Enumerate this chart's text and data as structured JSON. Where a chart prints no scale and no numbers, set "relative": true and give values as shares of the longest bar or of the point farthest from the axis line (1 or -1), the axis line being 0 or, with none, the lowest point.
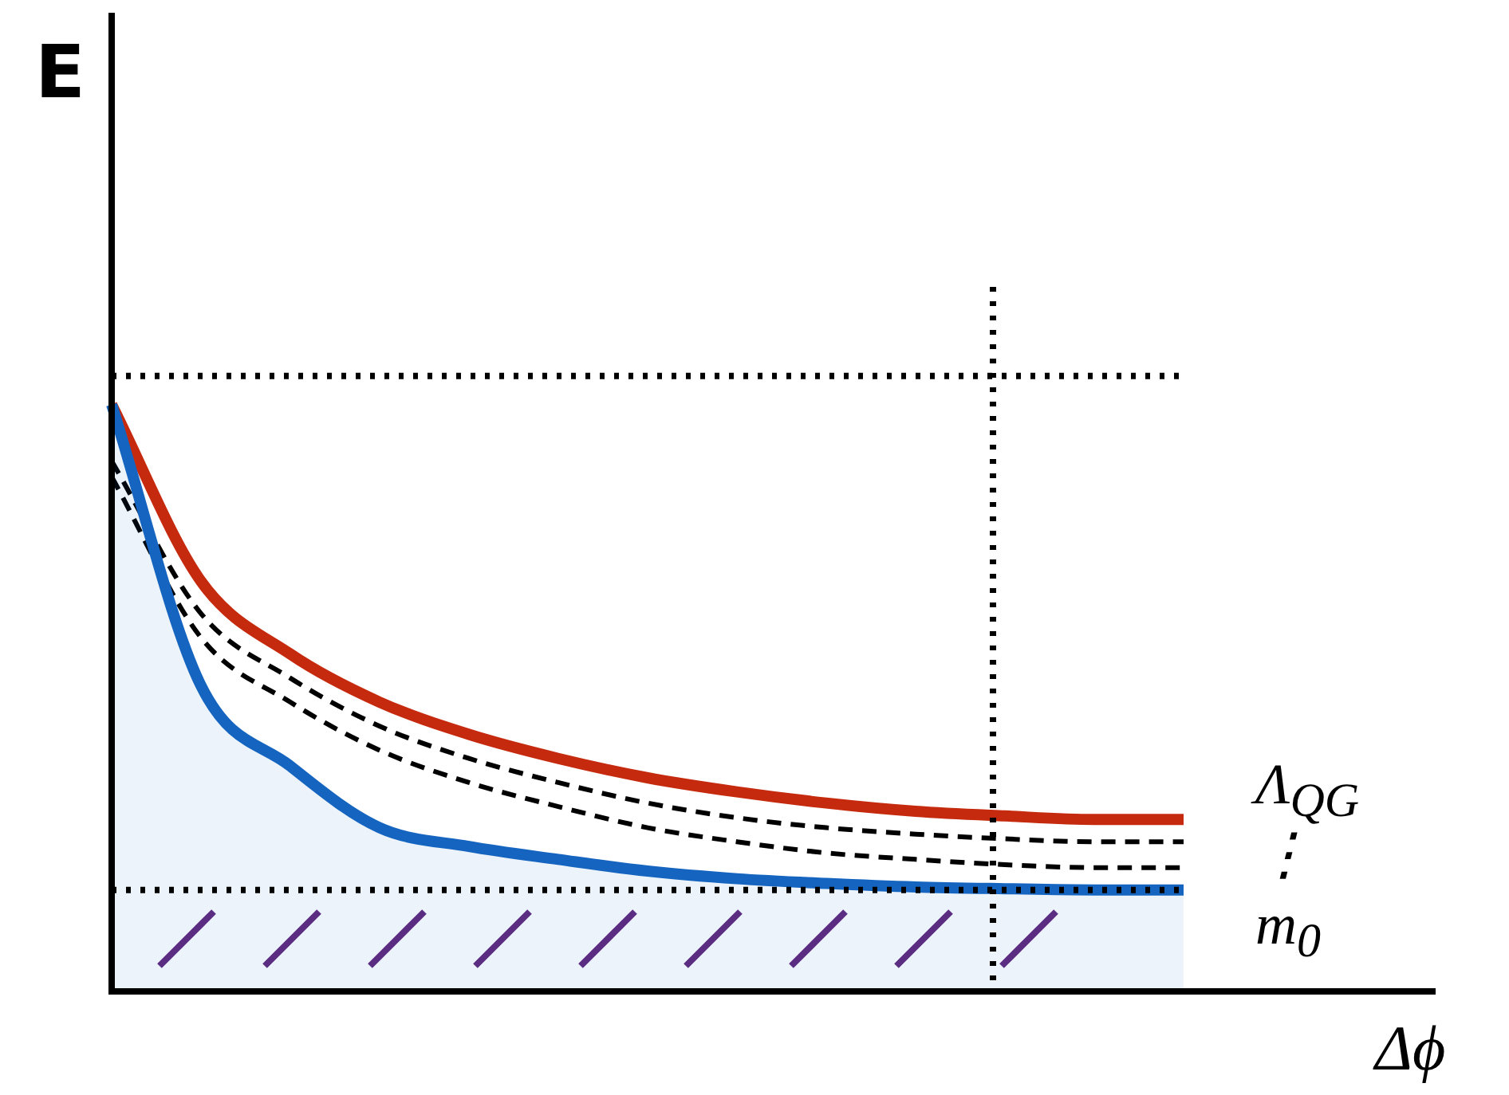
{
  "chart_data": {
    "type": "line",
    "relative": true,
    "xlabel": "Δϕ",
    "ylabel": "E",
    "categories": [
      null,
      null,
      null,
      null,
      null,
      null,
      null,
      null,
      null,
      null,
      null,
      null,
      null
    ],
    "series": [
      {
        "color": "#c62a0e",
        "values": [
          1,
          0.699,
          0.575,
          0.493,
          0.438,
          0.397,
          0.364,
          0.34,
          0.321,
          0.307,
          0.299,
          0.293,
          0.293
        ]
      },
      {
        "color": "#000000",
        "line_style": "dashed",
        "values": [
          0.904,
          0.644,
          0.534,
          0.452,
          0.397,
          0.356,
          0.321,
          0.296,
          0.279,
          0.268,
          0.26,
          0.255,
          0.255
        ]
      },
      {
        "color": "#000000",
        "line_style": "dashed",
        "values": [
          0.877,
          0.603,
          0.493,
          0.411,
          0.356,
          0.315,
          0.279,
          0.255,
          0.236,
          0.225,
          0.216,
          0.211,
          0.211
        ]
      },
      {
        "type": "area",
        "color": "#1565c0",
        "values": [
          1,
          0.521,
          0.384,
          0.279,
          0.247,
          0.225,
          0.205,
          0.192,
          0.184,
          0.178,
          0.175,
          0.173,
          0.173
        ]
      }
    ],
    "ref_lines": [
      {
        "axis": "y",
        "value": 1.049,
        "color": "#000000",
        "line_style": "dotted"
      },
      {
        "axis": "y",
        "value": 0.173,
        "color": "#000000",
        "line_style": "dotted"
      }
    ],
    "annotations": [
      "Λ$_{QG}$",
      "⋮",
      "m$_{0}$"
    ],
    "legend": false,
    "grid": false,
    "tick_labels": false
  }
}
